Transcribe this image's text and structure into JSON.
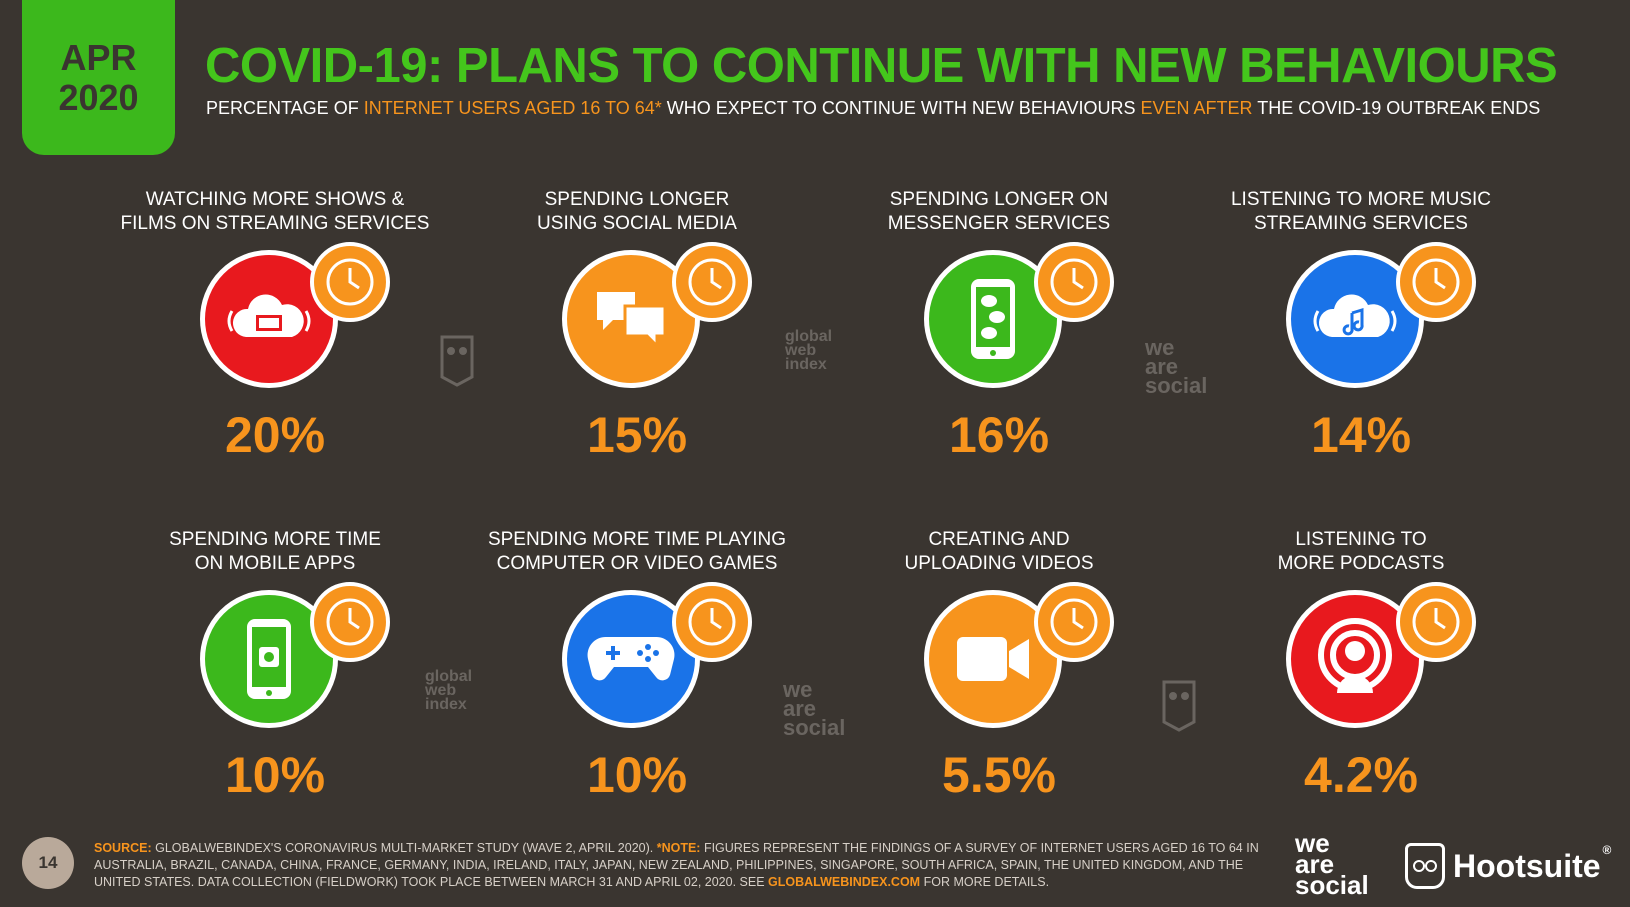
{
  "badge": {
    "month": "APR",
    "year": "2020"
  },
  "title": "COVID-19: PLANS TO CONTINUE WITH NEW BEHAVIOURS",
  "subtitle": {
    "part1": "PERCENTAGE OF ",
    "highlight1": "INTERNET USERS AGED 16 TO 64*",
    "part2": " WHO EXPECT TO CONTINUE WITH NEW BEHAVIOURS ",
    "highlight2": "EVEN AFTER",
    "part3": " THE COVID-19 OUTBREAK ENDS"
  },
  "colors": {
    "background": "#3a3530",
    "title": "#44c61c",
    "accent": "#f7941d"
  },
  "items": [
    {
      "line1": "WATCHING MORE SHOWS &",
      "line2": "FILMS ON STREAMING SERVICES",
      "value": "20%",
      "color": "#e8191e",
      "icon": "streaming-cloud-tv-icon"
    },
    {
      "line1": "SPENDING LONGER",
      "line2": "USING SOCIAL MEDIA",
      "value": "15%",
      "color": "#f7941d",
      "icon": "chat-bubbles-icon"
    },
    {
      "line1": "SPENDING LONGER ON",
      "line2": "MESSENGER SERVICES",
      "value": "16%",
      "color": "#3cb81c",
      "icon": "phone-messenger-icon"
    },
    {
      "line1": "LISTENING TO MORE MUSIC",
      "line2": "STREAMING SERVICES",
      "value": "14%",
      "color": "#1a73e8",
      "icon": "music-cloud-icon"
    },
    {
      "line1": "SPENDING MORE TIME",
      "line2": "ON MOBILE APPS",
      "value": "10%",
      "color": "#3cb81c",
      "icon": "mobile-app-icon"
    },
    {
      "line1": "SPENDING MORE TIME PLAYING",
      "line2": "COMPUTER OR VIDEO GAMES",
      "value": "10%",
      "color": "#1a73e8",
      "icon": "gamepad-icon"
    },
    {
      "line1": "CREATING AND",
      "line2": "UPLOADING VIDEOS",
      "value": "5.5%",
      "color": "#f7941d",
      "icon": "video-camera-icon"
    },
    {
      "line1": "LISTENING TO",
      "line2": "MORE PODCASTS",
      "value": "4.2%",
      "color": "#e8191e",
      "icon": "podcast-icon"
    }
  ],
  "watermarks": {
    "gwi": [
      "global",
      "web",
      "index"
    ],
    "was": [
      "we",
      "are",
      "social"
    ]
  },
  "footer": {
    "page_number": "14",
    "source_label": "SOURCE:",
    "source_text": " GLOBALWEBINDEX'S CORONAVIRUS MULTI-MARKET STUDY (WAVE 2, APRIL 2020). ",
    "note_label": "*NOTE:",
    "note_text": " FIGURES REPRESENT THE FINDINGS OF A SURVEY OF INTERNET USERS AGED 16 TO 64 IN AUSTRALIA, BRAZIL, CANADA, CHINA, FRANCE, GERMANY, INDIA, IRELAND, ITALY, JAPAN, NEW ZEALAND, PHILIPPINES, SINGAPORE, SOUTH AFRICA, SPAIN, THE UNITED KINGDOM, AND THE UNITED STATES. DATA COLLECTION (FIELDWORK) TOOK PLACE BETWEEN MARCH 31 AND APRIL 02, 2020. SEE ",
    "link": "GLOBALWEBINDEX.COM",
    "tail": " FOR MORE DETAILS."
  },
  "brands": {
    "was": [
      "we",
      "are",
      "social"
    ],
    "hootsuite": "Hootsuite",
    "registered": "®"
  }
}
